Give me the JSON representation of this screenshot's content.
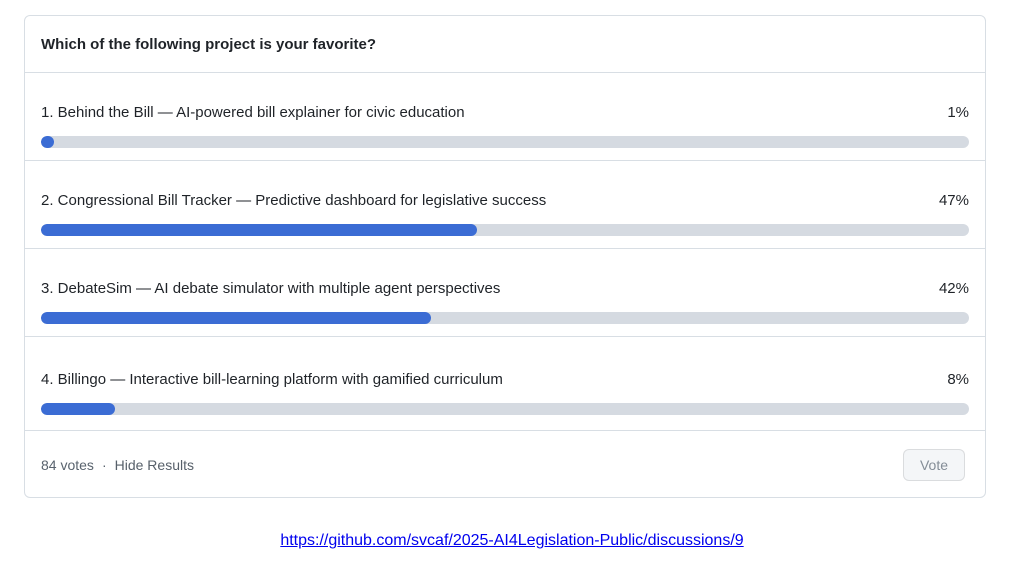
{
  "poll": {
    "question": "Which of the following project is your favorite?",
    "options": [
      {
        "label": "1. Behind the Bill — AI-powered bill explainer for civic education",
        "percent_label": "1%",
        "percent_value": 1
      },
      {
        "label": "2. Congressional Bill Tracker — Predictive dashboard for legislative success",
        "percent_label": "47%",
        "percent_value": 47
      },
      {
        "label": "3. DebateSim — AI debate simulator with multiple agent perspectives",
        "percent_label": "42%",
        "percent_value": 42
      },
      {
        "label": "4. Billingo — Interactive bill-learning platform with gamified curriculum",
        "percent_label": "8%",
        "percent_value": 8
      }
    ],
    "footer": {
      "votes_label": "84 votes",
      "separator": "·",
      "hide_results_label": "Hide Results",
      "vote_button_label": "Vote"
    },
    "colors": {
      "bar_fill": "#3b6cd4",
      "bar_track": "#d5dae1",
      "card_border": "#d8dee4",
      "link_blue": "#0000ee"
    }
  },
  "link": {
    "url": "https://github.com/svcaf/2025-AI4Legislation-Public/discussions/9",
    "text": "https://github.com/svcaf/2025-AI4Legislation-Public/discussions/9"
  }
}
